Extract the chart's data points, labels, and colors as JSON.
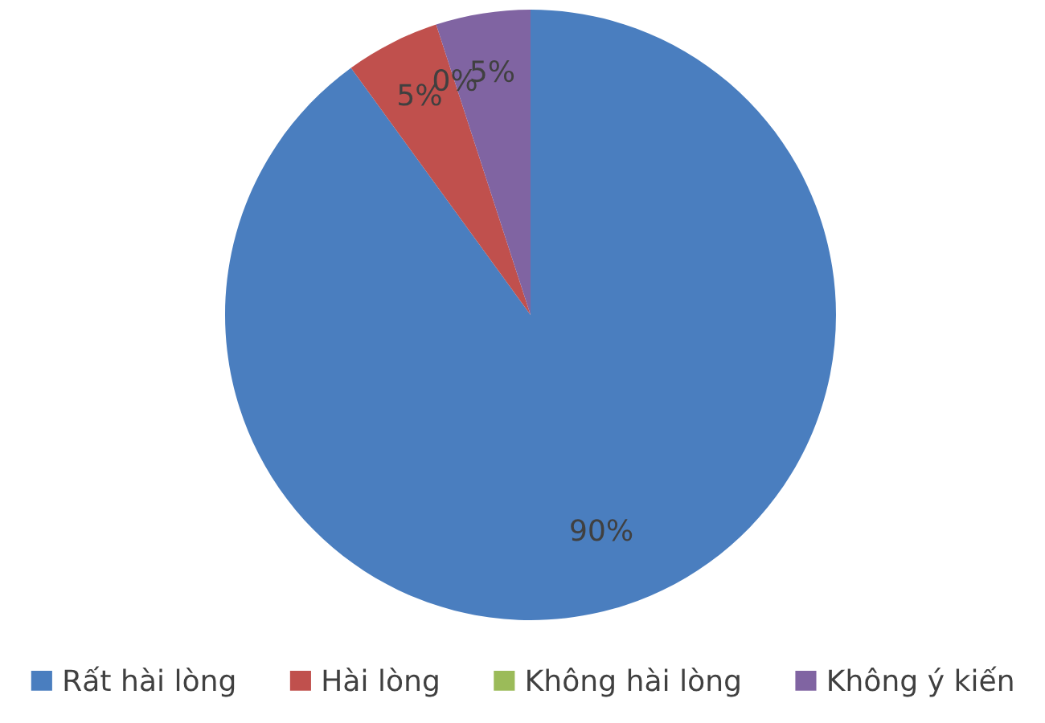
{
  "chart_data": {
    "type": "pie",
    "categories": [
      "Rất hài lòng",
      "Hài lòng",
      "Không hài lòng",
      "Không ý kiến"
    ],
    "values": [
      90,
      5,
      0,
      5
    ],
    "colors": [
      "#4a7ebf",
      "#c0504d",
      "#9bbb59",
      "#8064a2"
    ],
    "value_labels": [
      "90%",
      "5%",
      "0%",
      "5%"
    ],
    "legend": "bottom"
  }
}
